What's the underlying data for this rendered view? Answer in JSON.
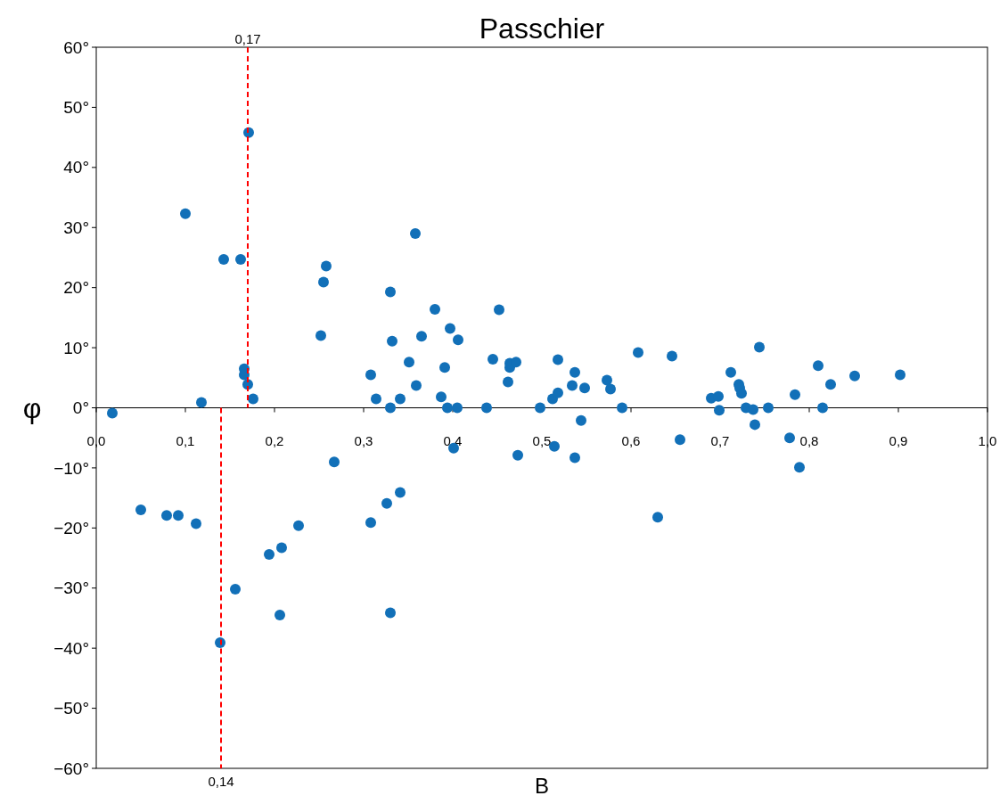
{
  "chart_data": {
    "type": "scatter",
    "title": "Passchier",
    "xlabel": "B",
    "ylabel": "φ",
    "marker": "circle",
    "grid": false,
    "xlim": [
      0,
      1
    ],
    "ylim": [
      -60,
      60
    ],
    "xticks": [
      {
        "value": 0,
        "label": "0,0"
      },
      {
        "value": 0.1,
        "label": "0,1"
      },
      {
        "value": 0.2,
        "label": "0,2"
      },
      {
        "value": 0.3,
        "label": "0,3"
      },
      {
        "value": 0.4,
        "label": "0,4"
      },
      {
        "value": 0.5,
        "label": "0,5"
      },
      {
        "value": 0.6,
        "label": "0,6"
      },
      {
        "value": 0.7,
        "label": "0,7"
      },
      {
        "value": 0.8,
        "label": "0,8"
      },
      {
        "value": 0.9,
        "label": "0,9"
      },
      {
        "value": 1,
        "label": "1,0"
      }
    ],
    "yticks": [
      {
        "value": -60,
        "label": "−60°"
      },
      {
        "value": -50,
        "label": "−50°"
      },
      {
        "value": -40,
        "label": "−40°"
      },
      {
        "value": -30,
        "label": "−30°"
      },
      {
        "value": -20,
        "label": "−20°"
      },
      {
        "value": -10,
        "label": "−10°"
      },
      {
        "value": 0,
        "label": "0°"
      },
      {
        "value": 10,
        "label": "10°"
      },
      {
        "value": 20,
        "label": "20°"
      },
      {
        "value": 30,
        "label": "30°"
      },
      {
        "value": 40,
        "label": "40°"
      },
      {
        "value": 50,
        "label": "50°"
      },
      {
        "value": 60,
        "label": "60°"
      }
    ],
    "ref_lines": [
      {
        "axis": "x",
        "value": 0.17,
        "label": "0,17",
        "color": "#ff0000",
        "line_style": "dashed"
      },
      {
        "axis": "x",
        "value": 0.14,
        "label": "0,14",
        "color": "#ff0000",
        "line_style": "dashed"
      }
    ],
    "series": [
      {
        "color": "#1270b8",
        "x": [
          0.018,
          0.05,
          0.079,
          0.092,
          0.1,
          0.112,
          0.118,
          0.143,
          0.139,
          0.156,
          0.162,
          0.171,
          0.166,
          0.166,
          0.17,
          0.176,
          0.194,
          0.206,
          0.208,
          0.227,
          0.252,
          0.255,
          0.258,
          0.267,
          0.308,
          0.308,
          0.314,
          0.326,
          0.33,
          0.332,
          0.33,
          0.33,
          0.341,
          0.341,
          0.351,
          0.359,
          0.358,
          0.365,
          0.38,
          0.387,
          0.391,
          0.394,
          0.397,
          0.401,
          0.405,
          0.406,
          0.438,
          0.445,
          0.452,
          0.462,
          0.464,
          0.464,
          0.471,
          0.473,
          0.498,
          0.512,
          0.514,
          0.518,
          0.518,
          0.534,
          0.537,
          0.537,
          0.544,
          0.548,
          0.573,
          0.577,
          0.59,
          0.608,
          0.63,
          0.646,
          0.655,
          0.69,
          0.698,
          0.699,
          0.712,
          0.721,
          0.722,
          0.724,
          0.729,
          0.737,
          0.739,
          0.744,
          0.754,
          0.778,
          0.784,
          0.789,
          0.81,
          0.815,
          0.824,
          0.851,
          0.902
        ],
        "values": [
          -0.9,
          -17.0,
          -17.9,
          -17.9,
          32.3,
          -19.3,
          0.9,
          24.7,
          -39.1,
          -30.2,
          24.7,
          45.8,
          6.5,
          5.5,
          3.9,
          1.5,
          -24.4,
          -34.5,
          -23.3,
          -19.6,
          12.0,
          20.9,
          23.6,
          -9.0,
          5.5,
          -19.1,
          1.5,
          -15.9,
          19.3,
          11.1,
          0,
          -34.1,
          1.5,
          -14.1,
          7.6,
          3.7,
          29.0,
          11.9,
          16.4,
          1.8,
          6.7,
          0,
          13.2,
          -6.7,
          0,
          11.3,
          0,
          8.1,
          16.3,
          4.3,
          6.7,
          7.4,
          7.6,
          -7.9,
          0,
          1.5,
          -6.4,
          8.0,
          2.5,
          3.7,
          5.9,
          -8.3,
          -2.1,
          3.3,
          4.6,
          3.1,
          0,
          9.2,
          -18.2,
          8.6,
          -5.3,
          1.6,
          1.9,
          -0.4,
          5.9,
          3.9,
          3.3,
          2.4,
          0,
          -0.3,
          -2.8,
          10.1,
          0,
          -5.0,
          2.2,
          -9.9,
          7.0,
          0,
          3.9,
          5.3,
          5.5
        ]
      }
    ]
  }
}
